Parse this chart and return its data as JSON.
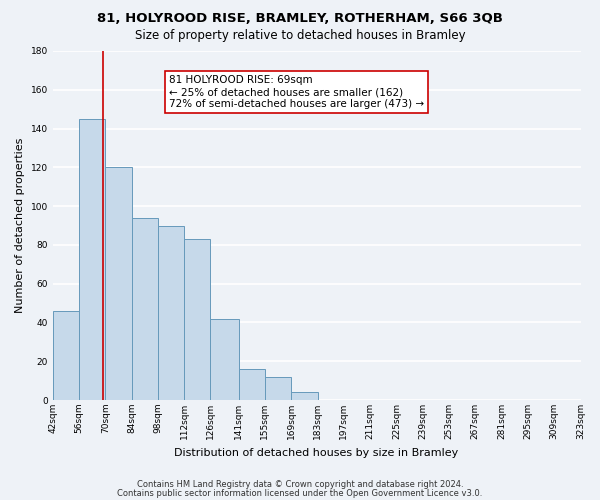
{
  "title": "81, HOLYROOD RISE, BRAMLEY, ROTHERHAM, S66 3QB",
  "subtitle": "Size of property relative to detached houses in Bramley",
  "xlabel": "Distribution of detached houses by size in Bramley",
  "ylabel": "Number of detached properties",
  "bin_edges": [
    42,
    56,
    70,
    84,
    98,
    112,
    126,
    141,
    155,
    169,
    183,
    197,
    211,
    225,
    239,
    253,
    267,
    281,
    295,
    309,
    323
  ],
  "bar_heights": [
    46,
    145,
    120,
    94,
    90,
    83,
    42,
    16,
    12,
    4,
    0,
    0,
    0,
    0,
    0,
    0,
    0,
    0,
    0,
    0
  ],
  "bar_color": "#c6d9ea",
  "bar_edge_color": "#6699bb",
  "property_line_x": 69,
  "property_line_color": "#cc0000",
  "annotation_text": "81 HOLYROOD RISE: 69sqm\n← 25% of detached houses are smaller (162)\n72% of semi-detached houses are larger (473) →",
  "annotation_box_color": "#ffffff",
  "annotation_box_edge_color": "#cc0000",
  "ylim": [
    0,
    180
  ],
  "yticks": [
    0,
    20,
    40,
    60,
    80,
    100,
    120,
    140,
    160,
    180
  ],
  "tick_labels": [
    "42sqm",
    "56sqm",
    "70sqm",
    "84sqm",
    "98sqm",
    "112sqm",
    "126sqm",
    "141sqm",
    "155sqm",
    "169sqm",
    "183sqm",
    "197sqm",
    "211sqm",
    "225sqm",
    "239sqm",
    "253sqm",
    "267sqm",
    "281sqm",
    "295sqm",
    "309sqm",
    "323sqm"
  ],
  "footer_line1": "Contains HM Land Registry data © Crown copyright and database right 2024.",
  "footer_line2": "Contains public sector information licensed under the Open Government Licence v3.0.",
  "background_color": "#eef2f7",
  "grid_color": "#ffffff",
  "title_fontsize": 9.5,
  "subtitle_fontsize": 8.5,
  "label_fontsize": 8,
  "tick_fontsize": 6.5,
  "footer_fontsize": 6,
  "annotation_fontsize": 7.5
}
